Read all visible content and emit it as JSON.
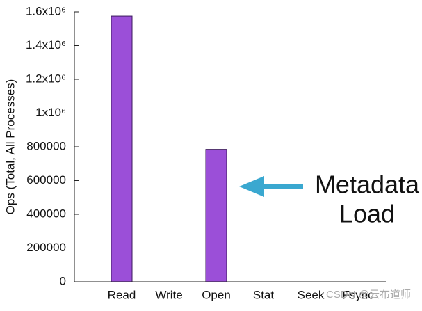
{
  "chart_data": {
    "type": "bar",
    "y_label": "Ops (Total, All Processes)",
    "categories": [
      "Read",
      "Write",
      "Open",
      "Stat",
      "Seek",
      "Fsync"
    ],
    "values": [
      1575000,
      0,
      785000,
      0,
      0,
      0
    ],
    "color": "#9b4fd8",
    "ylim": [
      0,
      1600000
    ],
    "yticks": [
      0,
      200000,
      400000,
      600000,
      800000,
      {
        "value": 1000000,
        "label": "1x10⁶"
      },
      {
        "value": 1200000,
        "label": "1.2x10⁶"
      },
      {
        "value": 1400000,
        "label": "1.4x10⁶"
      },
      {
        "value": 1600000,
        "label": "1.6x10⁶"
      }
    ],
    "annotation": [
      "Metadata",
      "Load"
    ],
    "watermark": "CSDN @云布道师"
  }
}
